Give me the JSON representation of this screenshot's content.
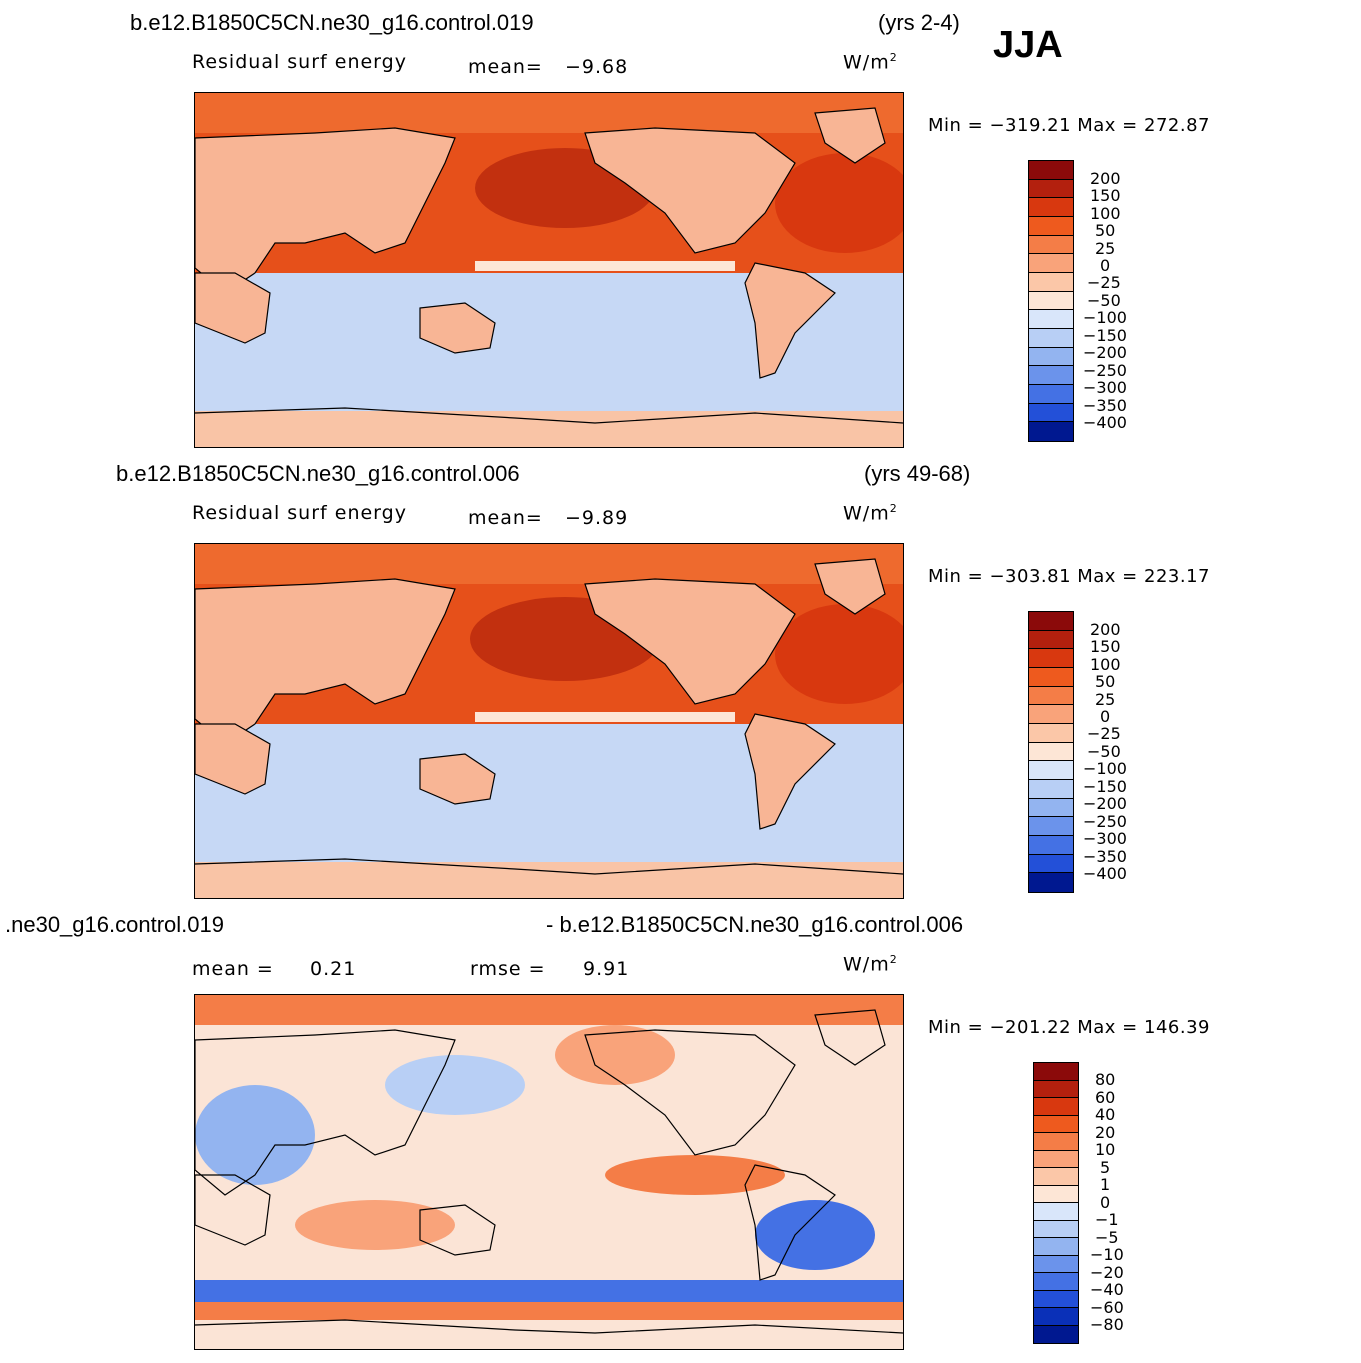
{
  "season": "JJA",
  "panels": [
    {
      "case_title": "b.e12.B1850C5CN.ne30_g16.control.019",
      "years": "(yrs 2-4)",
      "variable": "Residual surf energy",
      "stat1_label": "mean=",
      "stat1_value": "−9.68",
      "units_base": "W/m",
      "units_exp": "2",
      "minmax": "Min = −319.21 Max = 272.87",
      "colorbar_labels": [
        "200",
        "150",
        "100",
        "50",
        "25",
        "0",
        "−25",
        "−50",
        "−100",
        "−150",
        "−200",
        "−250",
        "−300",
        "−350",
        "−400"
      ]
    },
    {
      "case_title": "b.e12.B1850C5CN.ne30_g16.control.006",
      "years": "(yrs 49-68)",
      "variable": "Residual surf energy",
      "stat1_label": "mean=",
      "stat1_value": "−9.89",
      "units_base": "W/m",
      "units_exp": "2",
      "minmax": "Min = −303.81 Max = 223.17",
      "colorbar_labels": [
        "200",
        "150",
        "100",
        "50",
        "25",
        "0",
        "−25",
        "−50",
        "−100",
        "−150",
        "−200",
        "−250",
        "−300",
        "−350",
        "−400"
      ]
    },
    {
      "case_title_left": ".ne30_g16.control.019",
      "case_title_right": "- b.e12.B1850C5CN.ne30_g16.control.006",
      "stat1_label": "mean =",
      "stat1_value": "0.21",
      "stat2_label": "rmse =",
      "stat2_value": "9.91",
      "units_base": "W/m",
      "units_exp": "2",
      "minmax": "Min = −201.22 Max = 146.39",
      "colorbar_labels": [
        "80",
        "60",
        "40",
        "20",
        "10",
        "5",
        "1",
        "0",
        "−1",
        "−5",
        "−10",
        "−20",
        "−40",
        "−60",
        "−80"
      ]
    }
  ],
  "colors": {
    "scale": [
      "#8b0a0a",
      "#b3200e",
      "#d8380f",
      "#ee5a1e",
      "#f47d47",
      "#f9a37a",
      "#fbc7a8",
      "#fde6d6",
      "#d9e6fa",
      "#b8cff5",
      "#93b4f0",
      "#6b93eb",
      "#4471e4",
      "#2350d8",
      "#0a30b8",
      "#001890"
    ],
    "ocean_north_base": "#e6501a",
    "ocean_south_base": "#c6d8f5",
    "land_base": "#f8b595",
    "diff_base": "#fbe4d6"
  }
}
